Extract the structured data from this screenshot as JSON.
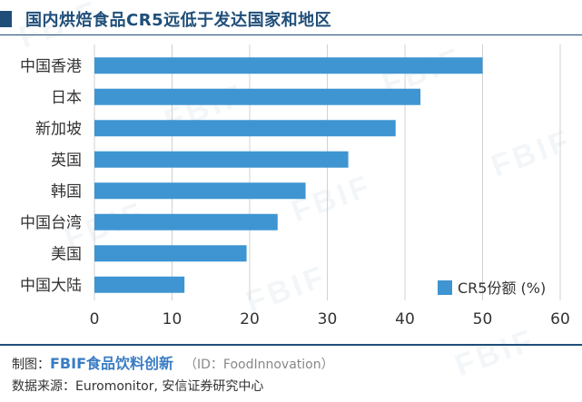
{
  "title": "国内烘焙食品CR5远低于发达国家和地区",
  "colors": {
    "accent": "#1f4e79",
    "bar": "#3e95d2",
    "rule": "#1f4e79",
    "grid": "#d0d0d0"
  },
  "watermark": "FBIF",
  "chart_data": {
    "type": "bar",
    "orientation": "horizontal",
    "categories": [
      "中国香港",
      "日本",
      "新加坡",
      "英国",
      "韩国",
      "中国台湾",
      "美国",
      "中国大陆"
    ],
    "series": [
      {
        "name": "CR5份额 (%)",
        "values": [
          50.0,
          42.0,
          38.8,
          32.7,
          27.2,
          23.6,
          19.6,
          11.6
        ]
      }
    ],
    "title": "国内烘焙食品CR5远低于发达国家和地区",
    "xlabel": "",
    "ylabel": "",
    "xlim": [
      0,
      60
    ],
    "xticks": [
      0,
      10,
      20,
      30,
      40,
      50,
      60
    ],
    "grid": "vertical",
    "legend": "bottom-right"
  },
  "footer": {
    "credit_prefix": "制图：",
    "credit_brand": "FBIF食品饮料创新",
    "credit_id": "（ID：FoodInnovation）",
    "source": "数据来源：Euromonitor, 安信证券研究中心"
  }
}
